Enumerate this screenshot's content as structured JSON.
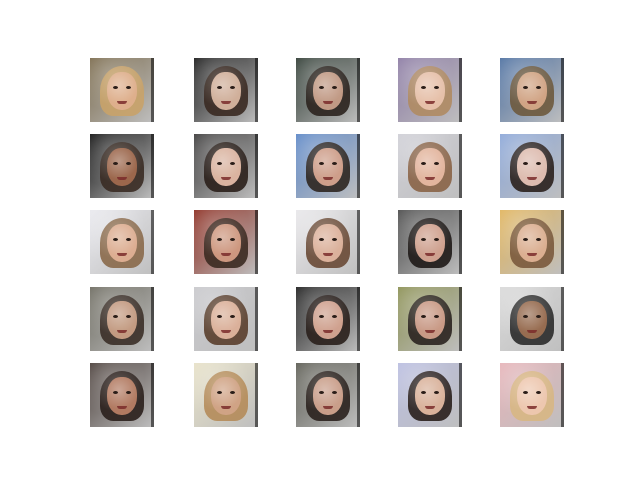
{
  "grid": {
    "rows": 5,
    "cols": 5,
    "tiles": [
      {
        "bg": "#7a6a4c",
        "hair": "#c9a36a",
        "skin": "#e0b08e"
      },
      {
        "bg": "#1a1a1a",
        "hair": "#3a2a22",
        "skin": "#d8b6a0"
      },
      {
        "bg": "#2f3b33",
        "hair": "#2c241f",
        "skin": "#c9a08a"
      },
      {
        "bg": "#8b7aa3",
        "hair": "#b08b63",
        "skin": "#e9c3ad"
      },
      {
        "bg": "#4c6fa0",
        "hair": "#6e5a3e",
        "skin": "#d6a888"
      },
      {
        "bg": "#111111",
        "hair": "#3a2c24",
        "skin": "#a16a4e"
      },
      {
        "bg": "#3b3a3a",
        "hair": "#2b201b",
        "skin": "#e3bba7"
      },
      {
        "bg": "#5b86c6",
        "hair": "#2e2621",
        "skin": "#d6a48f"
      },
      {
        "bg": "#cfcfd6",
        "hair": "#8a6447",
        "skin": "#e7b9a2"
      },
      {
        "bg": "#8aa6d8",
        "hair": "#2b211d",
        "skin": "#e6c3b6"
      },
      {
        "bg": "#e9e9ee",
        "hair": "#8a6a4b",
        "skin": "#e1b195"
      },
      {
        "bg": "#8a2b1f",
        "hair": "#3c2b22",
        "skin": "#d59d84"
      },
      {
        "bg": "#e8e7ea",
        "hair": "#6a4a36",
        "skin": "#e1b6a0"
      },
      {
        "bg": "#4a4a4a",
        "hair": "#1f1a18",
        "skin": "#d8a895"
      },
      {
        "bg": "#e0b35b",
        "hair": "#7b5a3d",
        "skin": "#e0b395"
      },
      {
        "bg": "#6c6a5f",
        "hair": "#3b2f28",
        "skin": "#caa086"
      },
      {
        "bg": "#c8c8cc",
        "hair": "#5a3f2d",
        "skin": "#e1b69f"
      },
      {
        "bg": "#1d1d1d",
        "hair": "#2a201c",
        "skin": "#d8a895"
      },
      {
        "bg": "#8a8f52",
        "hair": "#2b2420",
        "skin": "#d1a08b"
      },
      {
        "bg": "#d9d9d9",
        "hair": "#2b2b2b",
        "skin": "#9c6f52"
      },
      {
        "bg": "#4a3f3a",
        "hair": "#2b201c",
        "skin": "#b97f65"
      },
      {
        "bg": "#e7e1c7",
        "hair": "#b58c5a",
        "skin": "#d2a487"
      },
      {
        "bg": "#5b5b52",
        "hair": "#2b221e",
        "skin": "#d1a48f"
      },
      {
        "bg": "#b9bde0",
        "hair": "#2a201d",
        "skin": "#e2b9a1"
      },
      {
        "bg": "#e6b3b8",
        "hair": "#d8b784",
        "skin": "#efc8b1"
      }
    ]
  }
}
